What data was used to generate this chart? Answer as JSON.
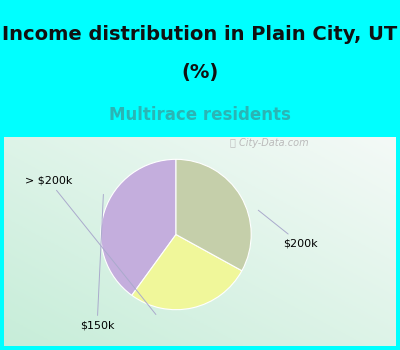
{
  "title": "Income distribution in Plain City, UT\n(%)",
  "subtitle": "Multirace residents",
  "slices": [
    {
      "label": "$200k",
      "value": 40,
      "color": "#c4aedd"
    },
    {
      "label": "> $200k",
      "value": 27,
      "color": "#f0f79a"
    },
    {
      "label": "$150k",
      "value": 33,
      "color": "#c5cfaa"
    }
  ],
  "title_fontsize": 14,
  "subtitle_fontsize": 12,
  "subtitle_color": "#2ab5b5",
  "bg_cyan": "#00ffff",
  "chart_bg": "#e8f5ee",
  "watermark": "City-Data.com",
  "startangle": 90,
  "title_split1": "Income distribution in Plain City, UT",
  "title_split2": "(%)"
}
